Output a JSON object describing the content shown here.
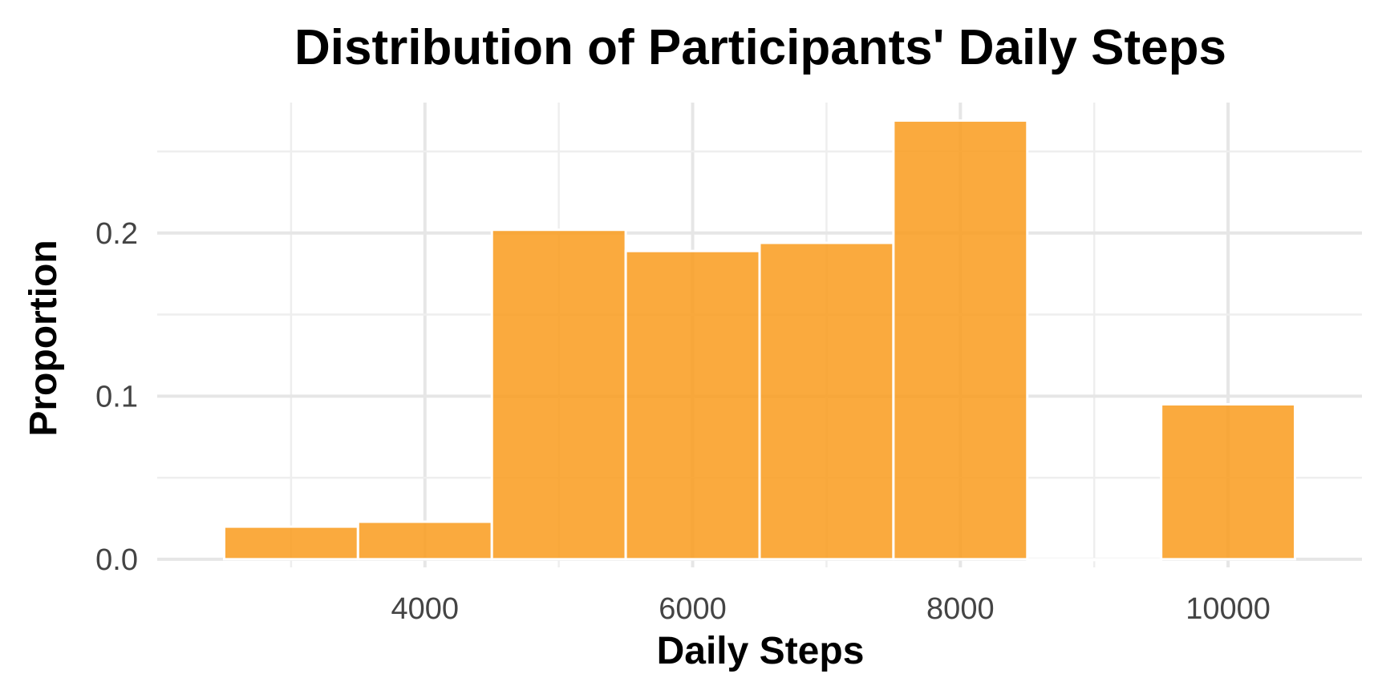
{
  "chart_data": {
    "type": "bar",
    "title": "Distribution of Participants' Daily Steps",
    "xlabel": "Daily Steps",
    "ylabel": "Proportion",
    "bin_width": 1000,
    "bins": [
      {
        "x": 3000,
        "value": 0.02
      },
      {
        "x": 4000,
        "value": 0.023
      },
      {
        "x": 5000,
        "value": 0.202
      },
      {
        "x": 6000,
        "value": 0.189
      },
      {
        "x": 7000,
        "value": 0.194
      },
      {
        "x": 8000,
        "value": 0.269
      },
      {
        "x": 9000,
        "value": 0.0
      },
      {
        "x": 10000,
        "value": 0.095
      }
    ],
    "x_ticks": [
      4000,
      6000,
      8000,
      10000
    ],
    "x_tick_labels": [
      "4000",
      "6000",
      "8000",
      "10000"
    ],
    "y_ticks": [
      0.0,
      0.1,
      0.2
    ],
    "y_tick_labels": [
      "0.0",
      "0.1",
      "0.2"
    ],
    "xlim": [
      2000,
      11000
    ],
    "ylim": [
      -0.005,
      0.28
    ],
    "grid": true,
    "bar_color": "#f99b1c",
    "background": "#ffffff"
  }
}
